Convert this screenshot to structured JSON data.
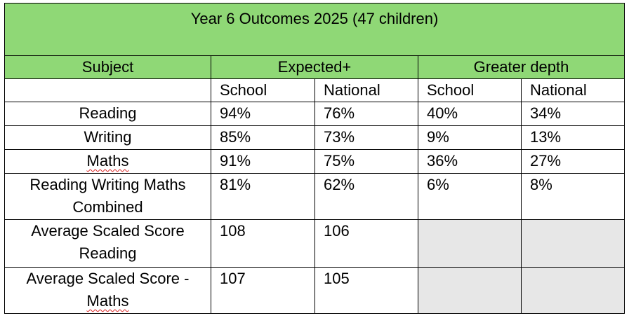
{
  "title": "Year 6 Outcomes 2025 (47 children)",
  "headers": {
    "subject": "Subject",
    "expected": "Expected+",
    "greater_depth": "Greater depth",
    "school": "School",
    "national": "National"
  },
  "rows": [
    {
      "line1": "Reading",
      "line2": "",
      "exp_school": "94%",
      "exp_national": "76%",
      "gd_school": "40%",
      "gd_national": "34%"
    },
    {
      "line1": "Writing",
      "line2": "",
      "exp_school": "85%",
      "exp_national": "73%",
      "gd_school": "9%",
      "gd_national": "13%"
    },
    {
      "line1": "Maths",
      "line2": "",
      "exp_school": "91%",
      "exp_national": "75%",
      "gd_school": "36%",
      "gd_national": "27%"
    },
    {
      "line1": "Reading Writing Maths",
      "line2": "Combined",
      "exp_school": "81%",
      "exp_national": "62%",
      "gd_school": "6%",
      "gd_national": "8%"
    },
    {
      "line1": "Average Scaled Score",
      "line2": "Reading",
      "exp_school": "108",
      "exp_national": "106",
      "gd_school": "",
      "gd_national": ""
    },
    {
      "line1": "Average Scaled Score -",
      "line2": "Maths",
      "exp_school": "107",
      "exp_national": "105",
      "gd_school": "",
      "gd_national": ""
    }
  ]
}
